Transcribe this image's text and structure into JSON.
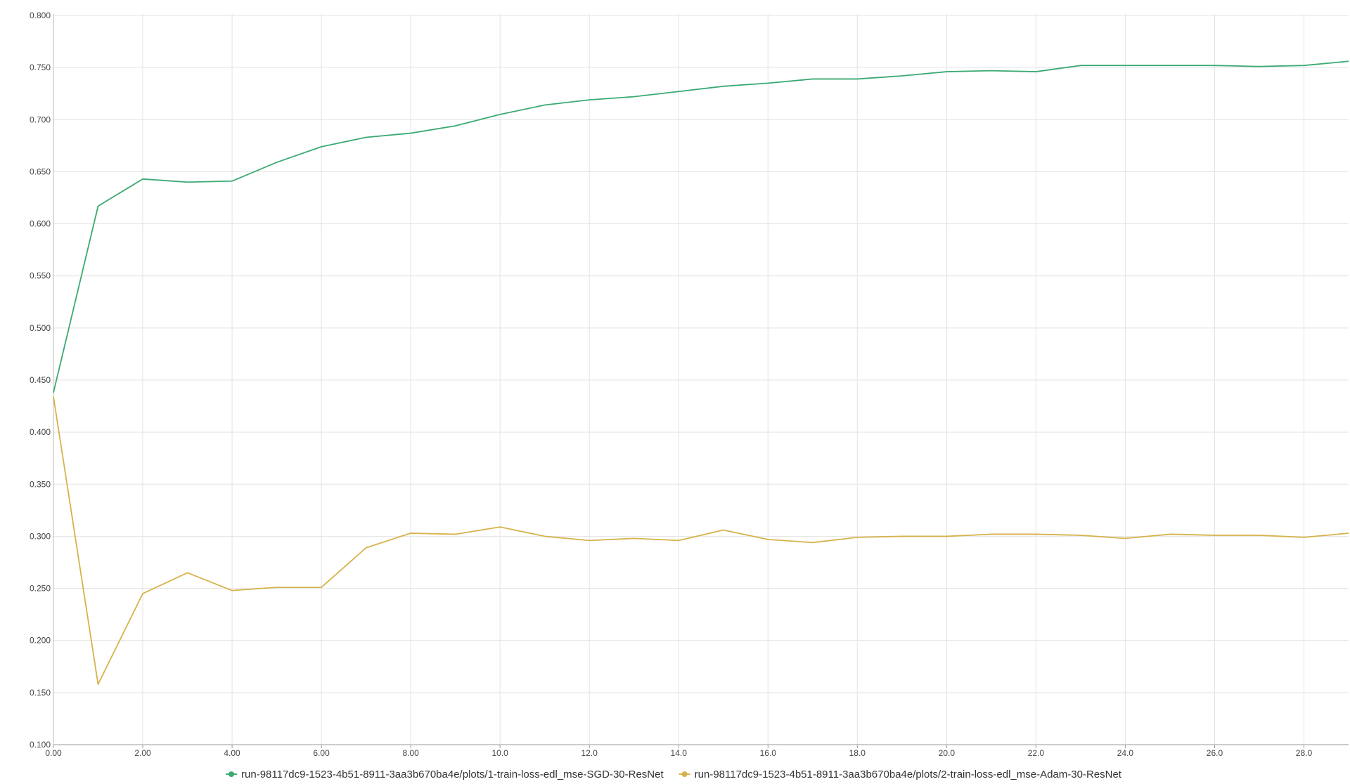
{
  "chart_data": {
    "type": "line",
    "title": "",
    "xlabel": "",
    "ylabel": "",
    "xlim": [
      0,
      29
    ],
    "ylim": [
      0.1,
      0.8
    ],
    "grid": true,
    "legend_position": "bottom-center",
    "x_ticks": [
      0,
      2,
      4,
      6,
      8,
      10,
      12,
      14,
      16,
      18,
      20,
      22,
      24,
      26,
      28
    ],
    "x_tick_labels": [
      "0.00",
      "2.00",
      "4.00",
      "6.00",
      "8.00",
      "10.0",
      "12.0",
      "14.0",
      "16.0",
      "18.0",
      "20.0",
      "22.0",
      "24.0",
      "26.0",
      "28.0"
    ],
    "y_ticks": [
      0.1,
      0.15,
      0.2,
      0.25,
      0.3,
      0.35,
      0.4,
      0.45,
      0.5,
      0.55,
      0.6,
      0.65,
      0.7,
      0.75,
      0.8
    ],
    "y_tick_labels": [
      "0.100",
      "0.150",
      "0.200",
      "0.250",
      "0.300",
      "0.350",
      "0.400",
      "0.450",
      "0.500",
      "0.550",
      "0.600",
      "0.650",
      "0.700",
      "0.750",
      "0.800"
    ],
    "x": [
      0,
      1,
      2,
      3,
      4,
      5,
      6,
      7,
      8,
      9,
      10,
      11,
      12,
      13,
      14,
      15,
      16,
      17,
      18,
      19,
      20,
      21,
      22,
      23,
      24,
      25,
      26,
      27,
      28,
      29
    ],
    "series": [
      {
        "name": "run-98117dc9-1523-4b51-8911-3aa3b670ba4e/plots/1-train-loss-edl_mse-SGD-30-ResNet",
        "color": "#3aaa72",
        "values": [
          0.438,
          0.617,
          0.643,
          0.64,
          0.641,
          0.659,
          0.674,
          0.683,
          0.687,
          0.694,
          0.705,
          0.714,
          0.719,
          0.722,
          0.727,
          0.732,
          0.735,
          0.739,
          0.739,
          0.742,
          0.746,
          0.747,
          0.746,
          0.752,
          0.752,
          0.752,
          0.752,
          0.751,
          0.752,
          0.756
        ]
      },
      {
        "name": "run-98117dc9-1523-4b51-8911-3aa3b670ba4e/plots/2-train-loss-edl_mse-Adam-30-ResNet",
        "color": "#d6b24a",
        "values": [
          0.434,
          0.158,
          0.245,
          0.265,
          0.248,
          0.251,
          0.251,
          0.289,
          0.303,
          0.302,
          0.309,
          0.3,
          0.296,
          0.298,
          0.296,
          0.306,
          0.297,
          0.294,
          0.299,
          0.3,
          0.3,
          0.302,
          0.302,
          0.301,
          0.298,
          0.302,
          0.301,
          0.301,
          0.299,
          0.303
        ]
      }
    ]
  }
}
